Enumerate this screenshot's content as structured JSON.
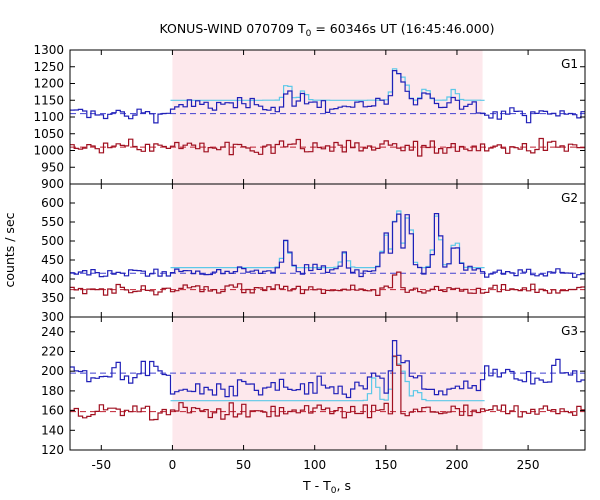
{
  "chart_data": {
    "type": "line",
    "title_main": "KONUS-WIND 070709 T",
    "title_sub": "0",
    "title_rest": " = 60346s UT (16:45:46.000)",
    "xlabel_main": "T - T",
    "xlabel_sub": "0",
    "xlabel_rest": ", s",
    "ylabel": "counts / sec",
    "xlim": [
      -72,
      290
    ],
    "xticks": [
      -50,
      0,
      50,
      100,
      150,
      200,
      250
    ],
    "xtick_labels": [
      "-50",
      "0",
      "50",
      "100",
      "150",
      "200",
      "250"
    ],
    "shaded_interval": [
      0,
      218
    ],
    "colors": {
      "shade": "#fde8ec",
      "series_high": "#2020b8",
      "series_low": "#a01020",
      "fit": "#5cc8e8",
      "background_level_high": "#4040d0",
      "background_level_low": "#c02030"
    },
    "bin_width": 2.944,
    "panels": [
      {
        "name": "G1",
        "ylim": [
          900,
          1300
        ],
        "yticks": [
          900,
          950,
          1000,
          1050,
          1100,
          1150,
          1200,
          1250,
          1300
        ],
        "ytick_labels": [
          "900",
          "950",
          "1000",
          "1050",
          "1100",
          "1150",
          "1200",
          "1250",
          "1300"
        ],
        "background_high": 1110,
        "background_low": 1010,
        "fit_level": 1150,
        "fit_peak": 1200,
        "noise_high": 15,
        "noise_low": 15,
        "peaks": [
          {
            "t": 81,
            "dy": 55
          },
          {
            "t": 92,
            "dy": 30
          },
          {
            "t": 157,
            "dy": 105
          },
          {
            "t": 163,
            "dy": 70
          },
          {
            "t": 178,
            "dy": 40
          },
          {
            "t": 198,
            "dy": 35
          }
        ]
      },
      {
        "name": "G2",
        "ylim": [
          300,
          650
        ],
        "yticks": [
          300,
          350,
          400,
          450,
          500,
          550,
          600
        ],
        "ytick_labels": [
          "300",
          "350",
          "400",
          "450",
          "500",
          "550",
          "600"
        ],
        "background_high": 415,
        "background_low": 372,
        "fit_level": 430,
        "fit_peak": 590,
        "noise_high": 10,
        "noise_low": 9,
        "peaks": [
          {
            "t": 80,
            "dy": 75
          },
          {
            "t": 121,
            "dy": 40
          },
          {
            "t": 150,
            "dy": 90
          },
          {
            "t": 158,
            "dy": 175
          },
          {
            "t": 166,
            "dy": 150
          },
          {
            "t": 186,
            "dy": 145
          },
          {
            "t": 199,
            "dy": 80
          }
        ]
      },
      {
        "name": "G3",
        "ylim": [
          120,
          255
        ],
        "yticks": [
          120,
          140,
          160,
          180,
          200,
          220,
          240
        ],
        "ytick_labels": [
          "120",
          "140",
          "160",
          "180",
          "200",
          "220",
          "240"
        ],
        "background_high": 198,
        "background_low": 159,
        "fit_level": 170,
        "fit_peak": 222,
        "noise_high": 8,
        "noise_low": 6,
        "peaks": [
          {
            "t": 142,
            "dy": 25
          },
          {
            "t": 157,
            "dy": 50
          },
          {
            "t": 163,
            "dy": 30
          },
          {
            "t": 172,
            "dy": 12
          }
        ]
      }
    ]
  }
}
